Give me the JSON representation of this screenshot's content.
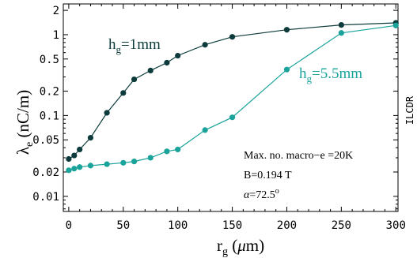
{
  "chart_data": {
    "type": "line",
    "yscale": "log",
    "xlim": [
      -5,
      302
    ],
    "ylim": [
      0.0065,
      2.4
    ],
    "x_ticks": [
      0,
      50,
      100,
      150,
      200,
      250,
      300
    ],
    "y_ticks": [
      {
        "value": 0.01,
        "label": "0.01"
      },
      {
        "value": 0.02,
        "label": "0.02"
      },
      {
        "value": 0.05,
        "label": "0.05"
      },
      {
        "value": 0.1,
        "label": "0.1"
      },
      {
        "value": 0.2,
        "label": "0.2"
      },
      {
        "value": 0.5,
        "label": "0.5"
      },
      {
        "value": 1,
        "label": "1"
      },
      {
        "value": 2,
        "label": "2"
      }
    ],
    "series": [
      {
        "name": "h_g=1mm",
        "color": "#0d3b3b",
        "x": [
          0,
          5,
          10,
          20,
          35,
          50,
          60,
          75,
          90,
          100,
          125,
          150,
          200,
          250,
          300
        ],
        "y": [
          0.029,
          0.032,
          0.038,
          0.053,
          0.108,
          0.19,
          0.28,
          0.36,
          0.45,
          0.55,
          0.75,
          0.94,
          1.15,
          1.32,
          1.4
        ]
      },
      {
        "name": "h_g=5.5mm",
        "color": "#19a39a",
        "x": [
          0,
          5,
          10,
          20,
          35,
          50,
          60,
          75,
          90,
          100,
          125,
          150,
          200,
          250,
          300
        ],
        "y": [
          0.021,
          0.022,
          0.023,
          0.024,
          0.025,
          0.026,
          0.027,
          0.03,
          0.036,
          0.038,
          0.066,
          0.095,
          0.37,
          1.05,
          1.3
        ]
      }
    ],
    "xlabel": {
      "main": "r",
      "sub": "g",
      "unit_open": " (",
      "mu": "μ",
      "unit_close": "m)"
    },
    "ylabel": {
      "main": "λ",
      "sub": "e",
      "rest": " (nC/m)"
    },
    "series_labels": [
      {
        "main": "h",
        "sub": "g",
        "rest": "=1mm"
      },
      {
        "main": "h",
        "sub": "g",
        "rest": "=5.5mm"
      }
    ],
    "annotations": {
      "line1": "Max. no. macro−e =20K",
      "line2": "B=0.194 T",
      "line3_symbol": "α",
      "line3_value": "=72.5",
      "line3_sup": "o"
    },
    "side_label": "ILCDR"
  }
}
